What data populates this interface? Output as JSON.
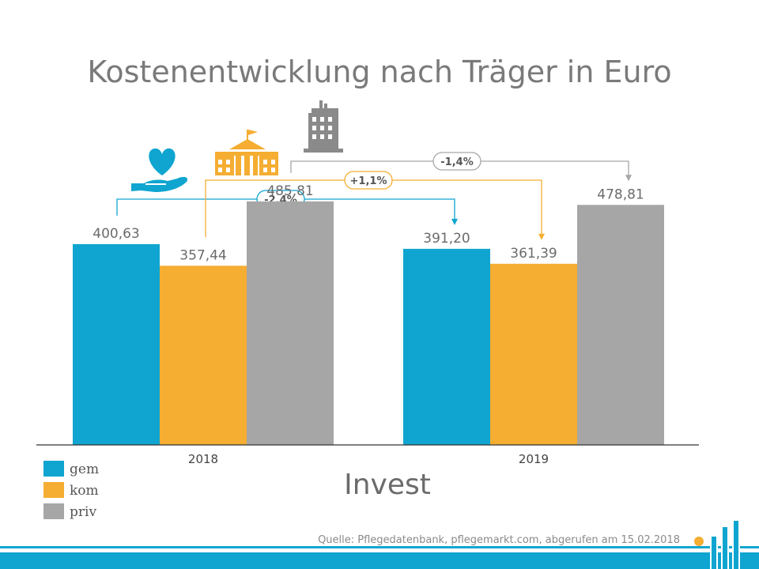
{
  "chart_data": {
    "type": "bar",
    "title": "Kostenentwicklung nach Träger in Euro",
    "xlabel": "Invest",
    "ylabel": "",
    "categories": [
      "2018",
      "2019"
    ],
    "series": [
      {
        "name": "gem",
        "color": "#0fa5d0",
        "values": [
          400.63,
          391.2
        ],
        "labels": [
          "400,63",
          "391,20"
        ]
      },
      {
        "name": "kom",
        "color": "#f5ad32",
        "values": [
          357.44,
          361.39
        ],
        "labels": [
          "357,44",
          "361,39"
        ]
      },
      {
        "name": "priv",
        "color": "#a6a6a6",
        "values": [
          485.81,
          478.81
        ],
        "labels": [
          "485,81",
          "478,81"
        ]
      }
    ],
    "ylim": [
      0,
      525
    ],
    "grid": false,
    "legend": "bottom-left",
    "changes": [
      {
        "series": "gem",
        "label": "-2,4%"
      },
      {
        "series": "kom",
        "label": "+1,1%"
      },
      {
        "series": "priv",
        "label": "-1,4%"
      }
    ],
    "icons": [
      "heart-hand-icon",
      "public-building-icon",
      "office-tower-icon"
    ]
  },
  "footer": {
    "source": "Quelle: Pflegedatenbank, pflegemarkt.com, abgerufen am 15.02.2018",
    "band_color": "#0fa5d0"
  }
}
